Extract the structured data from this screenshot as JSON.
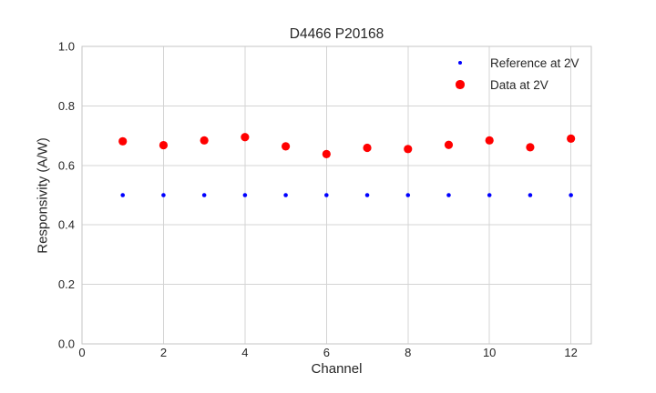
{
  "figure": {
    "background": "#ffffff",
    "text_color": "#262626"
  },
  "chart_data": {
    "type": "scatter",
    "title": "D4466 P20168",
    "xlabel": "Channel",
    "ylabel": "Responsivity (A/W)",
    "xlim": [
      0,
      12.5
    ],
    "ylim": [
      0.0,
      1.0
    ],
    "grid": true,
    "grid_color": "#d4d4d4",
    "spine_color": "#c6c6c6",
    "tick_color": "#262626",
    "x_ticks": [
      {
        "v": 0,
        "label": "0"
      },
      {
        "v": 2,
        "label": "2"
      },
      {
        "v": 4,
        "label": "4"
      },
      {
        "v": 6,
        "label": "6"
      },
      {
        "v": 8,
        "label": "8"
      },
      {
        "v": 10,
        "label": "10"
      },
      {
        "v": 12,
        "label": "12"
      }
    ],
    "y_ticks": [
      {
        "v": 0.0,
        "label": "0.0"
      },
      {
        "v": 0.2,
        "label": "0.2"
      },
      {
        "v": 0.4,
        "label": "0.4"
      },
      {
        "v": 0.6,
        "label": "0.6"
      },
      {
        "v": 0.8,
        "label": "0.8"
      },
      {
        "v": 1.0,
        "label": "1.0"
      }
    ],
    "x": [
      1,
      2,
      3,
      4,
      5,
      6,
      7,
      8,
      9,
      10,
      11,
      12
    ],
    "series": [
      {
        "name": "Reference at 2V",
        "color": "#0000ff",
        "marker": "circle",
        "marker_radius": 2.3,
        "values": [
          0.5,
          0.5,
          0.5,
          0.5,
          0.5,
          0.5,
          0.5,
          0.5,
          0.5,
          0.5,
          0.5,
          0.5
        ]
      },
      {
        "name": "Data at 2V",
        "color": "#ff0000",
        "marker": "circle",
        "marker_radius": 4.6,
        "values": [
          0.681,
          0.668,
          0.684,
          0.695,
          0.664,
          0.638,
          0.659,
          0.655,
          0.669,
          0.684,
          0.661,
          0.69
        ]
      }
    ],
    "legend": {
      "position": "upper right",
      "frame": false
    }
  }
}
